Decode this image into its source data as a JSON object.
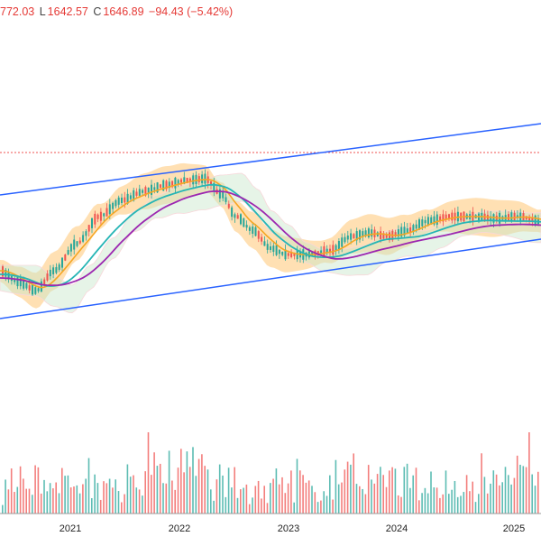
{
  "ohlc": {
    "open_partial": "772.03",
    "low_key": "L",
    "low": "1642.57",
    "close_key": "C",
    "close": "1646.89",
    "change": "−94.43 (−5.42%)"
  },
  "colors": {
    "up": "#26a69a",
    "down": "#ef5350",
    "channel": "#2962ff",
    "ma_fast": "#f5a623",
    "ma_mid": "#26b5b5",
    "ma_slow": "#9c27b0",
    "band_fill": "#ffd699",
    "cloud_up": "#c8e6c9",
    "cloud_down": "#f8d7da",
    "ref_line": "#ef5350"
  },
  "chart_data": {
    "type": "line",
    "x_tick_labels": [
      "2021",
      "2022",
      "2023",
      "2024",
      "2025"
    ],
    "overlays": [
      "parallel price channel",
      "moving averages (orange, teal, purple)",
      "bollinger-style band",
      "ichimoku-style cloud",
      "dotted reference level"
    ],
    "volume": true
  }
}
